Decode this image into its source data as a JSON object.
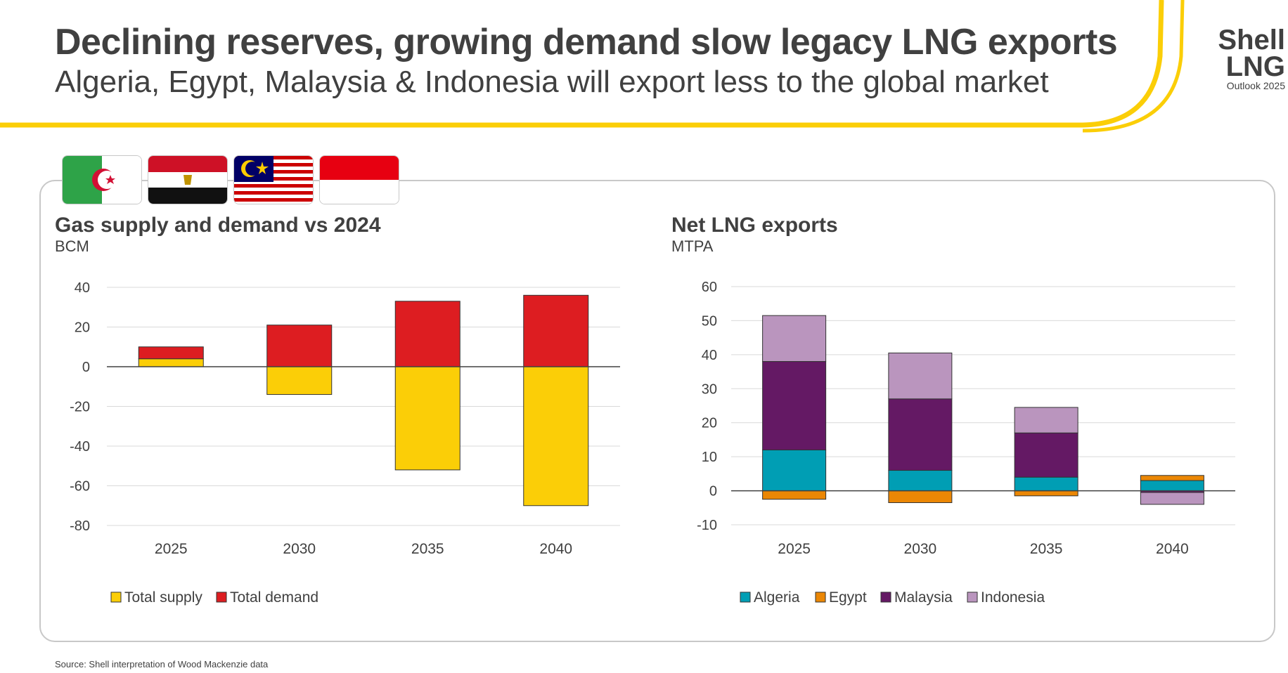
{
  "header": {
    "title": "Declining reserves, growing demand slow legacy LNG exports",
    "subtitle": "Algeria, Egypt, Malaysia & Indonesia will export less to the global market",
    "brand_line1": "Shell",
    "brand_line2": "LNG",
    "brand_line3": "Outlook 2025"
  },
  "flags": [
    "algeria-flag",
    "egypt-flag",
    "malaysia-flag",
    "indonesia-flag"
  ],
  "colors": {
    "accent_yellow": "#FBCE07",
    "red": "#DD1D21",
    "algeria": "#009EB4",
    "egypt": "#EB8705",
    "malaysia": "#641964",
    "indonesia": "#BA95BE",
    "grid": "#D9D9D9",
    "text": "#404040"
  },
  "chart_data": [
    {
      "type": "bar",
      "stacked": true,
      "title": "Gas supply and demand vs 2024",
      "ylabel": "BCM",
      "categories": [
        "2025",
        "2030",
        "2035",
        "2040"
      ],
      "ylim": [
        -80,
        40
      ],
      "yticks": [
        40,
        20,
        0,
        -20,
        -40,
        -60,
        -80
      ],
      "series": [
        {
          "name": "Total supply",
          "color": "#FBCE07",
          "values": [
            4,
            -14,
            -52,
            -70
          ]
        },
        {
          "name": "Total demand",
          "color": "#DD1D21",
          "values": [
            6,
            21,
            33,
            36
          ]
        }
      ],
      "legend": "bottom"
    },
    {
      "type": "bar",
      "stacked": true,
      "title": "Net LNG exports",
      "ylabel": "MTPA",
      "categories": [
        "2025",
        "2030",
        "2035",
        "2040"
      ],
      "ylim": [
        -10,
        60
      ],
      "yticks": [
        60,
        50,
        40,
        30,
        20,
        10,
        0,
        -10
      ],
      "series": [
        {
          "name": "Algeria",
          "color": "#009EB4",
          "values": [
            12,
            6,
            4,
            3
          ]
        },
        {
          "name": "Egypt",
          "color": "#EB8705",
          "values": [
            -2.5,
            -3.5,
            -1.5,
            1.5
          ]
        },
        {
          "name": "Malaysia",
          "color": "#641964",
          "values": [
            26,
            21,
            13,
            -0.5
          ]
        },
        {
          "name": "Indonesia",
          "color": "#BA95BE",
          "values": [
            13.5,
            13.5,
            7.5,
            -3.5
          ]
        }
      ],
      "legend": "bottom"
    }
  ],
  "source": "Source: Shell interpretation of Wood Mackenzie data"
}
